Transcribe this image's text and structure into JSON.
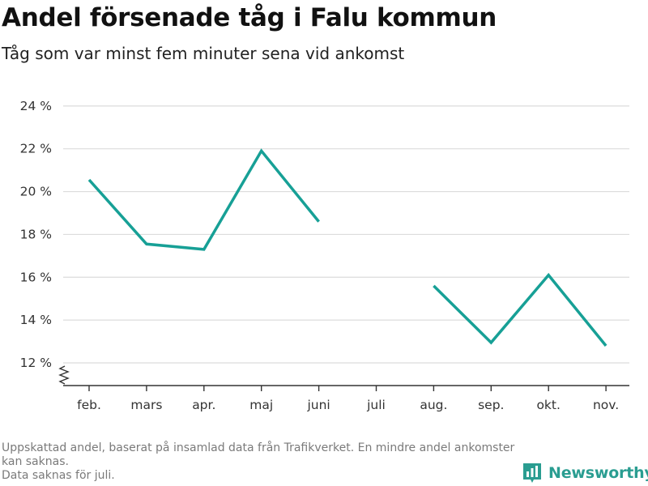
{
  "header": {
    "title": "Andel försenade tåg i Falu kommun",
    "subtitle": "Tåg som var minst fem minuter sena vid ankomst"
  },
  "chart_data": {
    "type": "line",
    "title": "Andel försenade tåg i Falu kommun",
    "subtitle": "Tåg som var minst fem minuter sena vid ankomst",
    "xlabel": "",
    "ylabel": "",
    "categories": [
      "feb.",
      "mars",
      "apr.",
      "maj",
      "juni",
      "juli",
      "aug.",
      "sep.",
      "okt.",
      "nov."
    ],
    "series": [
      {
        "values": [
          20.55,
          17.55,
          17.3,
          21.9,
          18.6,
          null,
          15.6,
          12.95,
          16.1,
          12.8
        ],
        "color": "#17a096"
      }
    ],
    "yticks": [
      12,
      14,
      16,
      18,
      20,
      22,
      24
    ],
    "ytick_labels": [
      "12 %",
      "14 %",
      "16 %",
      "18 %",
      "20 %",
      "22 %",
      "24 %"
    ],
    "ylim": [
      11,
      24.5
    ],
    "y_axis_break": true,
    "grid": true,
    "legend": "none"
  },
  "footnote": {
    "line1": "Uppskattad andel, baserat på insamlad data från Trafikverket. En mindre andel ankomster kan saknas.",
    "line2": "Data saknas för juli."
  },
  "brand": {
    "name": "Newsworthy",
    "color": "#2a9d91",
    "icon": "bar-chart-icon"
  }
}
